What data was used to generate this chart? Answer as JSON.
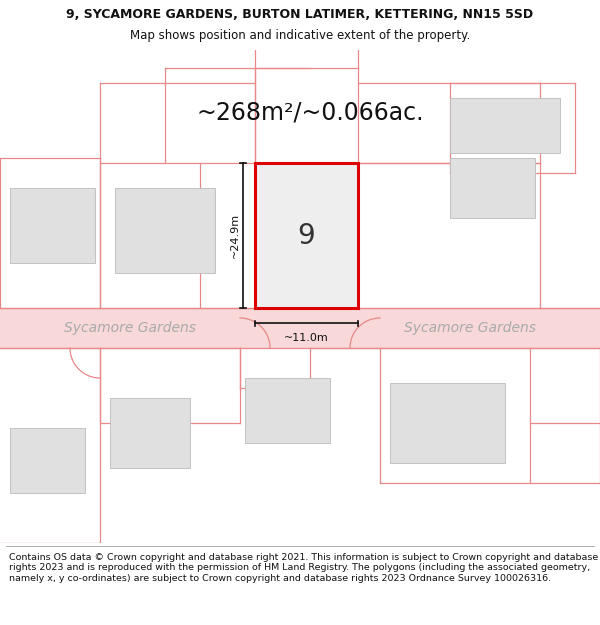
{
  "title_line1": "9, SYCAMORE GARDENS, BURTON LATIMER, KETTERING, NN15 5SD",
  "title_line2": "Map shows position and indicative extent of the property.",
  "area_text": "~268m²/~0.066ac.",
  "plot_number": "9",
  "width_label": "~11.0m",
  "height_label": "~24.9m",
  "street_name_left": "Sycamore Gardens",
  "street_name_right": "Sycamore Gardens",
  "footer_text": "Contains OS data © Crown copyright and database right 2021. This information is subject to Crown copyright and database rights 2023 and is reproduced with the permission of HM Land Registry. The polygons (including the associated geometry, namely x, y co-ordinates) are subject to Crown copyright and database rights 2023 Ordnance Survey 100026316.",
  "bg_color": "#ffffff",
  "map_bg": "#ffffff",
  "plot_fill": "#eeeeee",
  "plot_border": "#dd0000",
  "road_color": "#f8d8d8",
  "building_fill": "#e0e0e0",
  "building_border": "#cccccc",
  "road_line_color": "#e88888",
  "dim_line_color": "#111111",
  "street_text_color": "#aaaaaa",
  "title_fontsize": 9,
  "subtitle_fontsize": 8.5,
  "area_fontsize": 17,
  "plot_num_fontsize": 20,
  "label_fontsize": 8,
  "street_fontsize": 10,
  "footer_fontsize": 6.8
}
